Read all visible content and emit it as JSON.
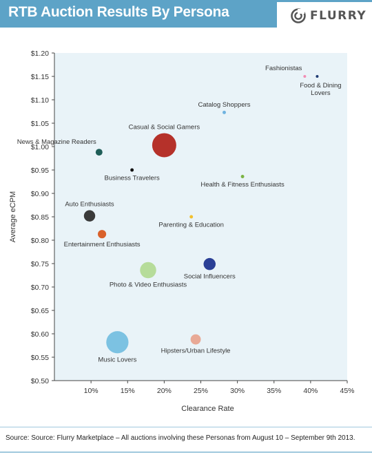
{
  "header": {
    "title": "RTB Auction Results By Persona",
    "logo_text": "FLURRY"
  },
  "source_text": "Source: Source: Flurry Marketplace – All auctions involving these Personas from August 10 – September 9th 2013.",
  "colors": {
    "header_bg": "#5da3c7",
    "plot_bg": "#e9f3f8"
  },
  "chart_data": {
    "type": "scatter",
    "title": "RTB Auction Results By Persona",
    "xlabel": "Clearance Rate",
    "ylabel": "Average eCPM",
    "xlim": [
      5,
      45
    ],
    "ylim": [
      0.5,
      1.2
    ],
    "xticks": [
      10,
      15,
      20,
      25,
      30,
      35,
      40,
      45
    ],
    "xtick_labels": [
      "10%",
      "15%",
      "20%",
      "25%",
      "30%",
      "35%",
      "40%",
      "45%"
    ],
    "yticks": [
      0.5,
      0.55,
      0.6,
      0.65,
      0.7,
      0.75,
      0.8,
      0.85,
      0.9,
      0.95,
      1.0,
      1.05,
      1.1,
      1.15,
      1.2
    ],
    "ytick_labels": [
      "$0.50",
      "$0.55",
      "$0.60",
      "$0.65",
      "$0.70",
      "$0.75",
      "$0.80",
      "$0.85",
      "$0.90",
      "$0.95",
      "$1.00",
      "$1.05",
      "$1.10",
      "$1.15",
      "$1.20"
    ],
    "grid": false,
    "points": [
      {
        "label": "Fashionistas",
        "x": 39.2,
        "y": 1.15,
        "size": 1,
        "color": "#f28db4",
        "label_pos": "above-left"
      },
      {
        "label": "Food & Dining Lovers",
        "x": 40.9,
        "y": 1.15,
        "size": 1,
        "color": "#1f3b73",
        "label_pos": "below"
      },
      {
        "label": "Catalog Shoppers",
        "x": 28.2,
        "y": 1.073,
        "size": 2,
        "color": "#6fb3e0",
        "label_pos": "above"
      },
      {
        "label": "Casual & Social Gamers",
        "x": 20.0,
        "y": 1.003,
        "size": 100,
        "color": "#b5312a",
        "label_pos": "above"
      },
      {
        "label": "News & Magazine Readers",
        "x": 11.1,
        "y": 0.988,
        "size": 8,
        "color": "#1f5e58",
        "label_pos": "above-left"
      },
      {
        "label": "Business Travelers",
        "x": 15.6,
        "y": 0.95,
        "size": 2,
        "color": "#111111",
        "label_pos": "below"
      },
      {
        "label": "Health & Fitness Enthusiasts",
        "x": 30.7,
        "y": 0.936,
        "size": 2,
        "color": "#7bb344",
        "label_pos": "below"
      },
      {
        "label": "Auto Enthusiasts",
        "x": 9.8,
        "y": 0.852,
        "size": 22,
        "color": "#3a3a3a",
        "label_pos": "above"
      },
      {
        "label": "Parenting & Education",
        "x": 23.7,
        "y": 0.85,
        "size": 2,
        "color": "#f2c02e",
        "label_pos": "below"
      },
      {
        "label": "Entertainment Enthusiasts",
        "x": 11.5,
        "y": 0.813,
        "size": 12,
        "color": "#d9612b",
        "label_pos": "below"
      },
      {
        "label": "Social Influencers",
        "x": 26.2,
        "y": 0.749,
        "size": 25,
        "color": "#2a3f96",
        "label_pos": "below"
      },
      {
        "label": "Photo & Video Enthusiasts",
        "x": 17.8,
        "y": 0.736,
        "size": 45,
        "color": "#b6dc9a",
        "label_pos": "below"
      },
      {
        "label": "Hipsters/Urban Lifestyle",
        "x": 24.3,
        "y": 0.588,
        "size": 18,
        "color": "#e8a996",
        "label_pos": "below"
      },
      {
        "label": "Music Lovers",
        "x": 13.6,
        "y": 0.582,
        "size": 85,
        "color": "#7cc2e2",
        "label_pos": "below"
      }
    ]
  }
}
